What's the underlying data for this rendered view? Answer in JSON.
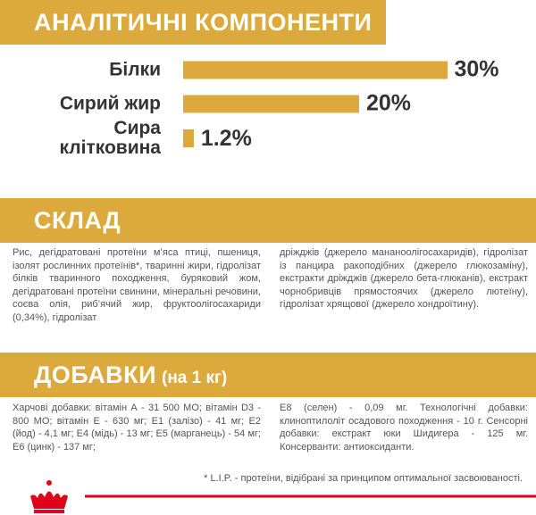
{
  "analysis": {
    "title": "АНАЛІТИЧНІ КОМПОНЕНТИ"
  },
  "chart_data": {
    "type": "bar",
    "categories": [
      "Білки",
      "Сирий жир",
      "Сира клітковина"
    ],
    "values": [
      30,
      20,
      1.2
    ],
    "value_labels": [
      "30%",
      "20%",
      "1.2%"
    ],
    "color": "#dcaa3c"
  },
  "composition": {
    "title": "СКЛАД",
    "text_left": "Рис, дегідратовані протеїни м’яса птиці, пшениця, ізолят рослинних протеїнів*, тваринні жири, гідролізат білків тваринного походження, буряковий жом, дегідратовані протеїни свинини, мінеральні речовини, соєва олія, риб’ячий жир, фруктоолігосахариди (0,34%), гідролізат",
    "text_right": "дріжджів (джерело мананоолігосахаридів), гідролізат із панцира ракоподібних (джерело глюкозаміну), екстракти дріжджів (джерело бета-глюканів), екстракт чорнобривців прямостоячих (джерело лютеїну), гідролізат хрящової (джерело хондроїтину)."
  },
  "additives": {
    "title": "ДОБАВКИ",
    "subtitle": "(на 1 кг)",
    "text_left": "Харчові добавки: вітамін А - 31 500 МО; вітамін D3 - 800 МО; вітамін Е - 630 мг; Е1 (залізо) - 41 мг; Е2 (йод) - 4,1 мг; Е4 (мідь) - 13 мг; Е5 (марганець) - 54 мг; Е6 (цинк) - 137 мг;",
    "text_right": "Е8 (селен) - 0,09 мг. Технологічні добавки: клиноптилоліт осадового походження - 10 г. Сенсорні добавки: екстракт юки Шидигера - 125 мг. Консерванти: антиоксиданти."
  },
  "footnote": "* L.I.P. - протеїни, відібрані за принципом оптимальної засвоюваності."
}
